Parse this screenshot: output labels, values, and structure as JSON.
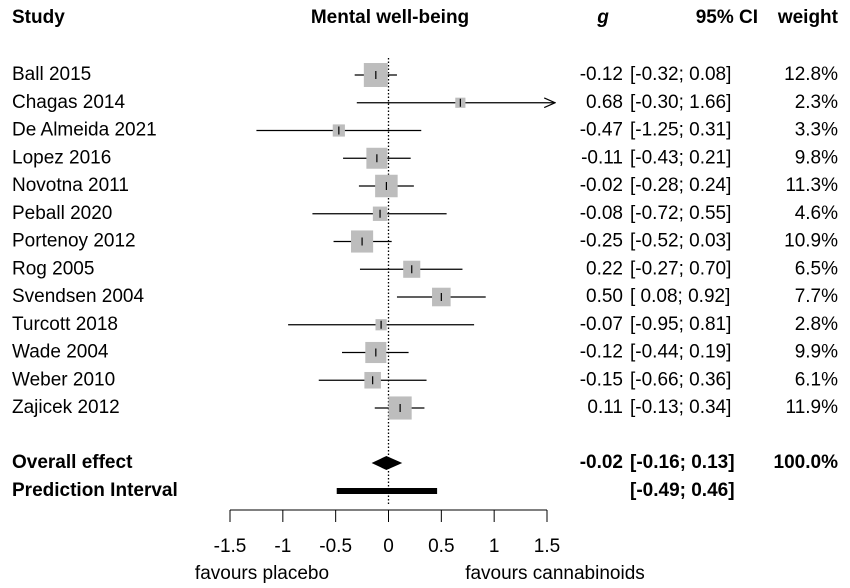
{
  "chart_data": {
    "type": "forest",
    "headers": {
      "study": "Study",
      "title": "Mental well-being",
      "g": "g",
      "ci": "95% CI",
      "weight": "weight"
    },
    "studies": [
      "Ball 2015",
      "Chagas 2014",
      "De Almeida 2021",
      "Lopez 2016",
      "Novotna 2011",
      "Peball 2020",
      "Portenoy 2012",
      "Rog 2005",
      "Svendsen 2004",
      "Turcott 2018",
      "Wade 2004",
      "Weber 2010",
      "Zajicek 2012"
    ],
    "effect": {
      "values": [
        -0.12,
        0.68,
        -0.47,
        -0.11,
        -0.02,
        -0.08,
        -0.25,
        0.22,
        0.5,
        -0.07,
        -0.12,
        -0.15,
        0.11
      ],
      "value_labels": [
        "-0.12",
        "0.68",
        "-0.47",
        "-0.11",
        "-0.02",
        "-0.08",
        "-0.25",
        "0.22",
        "0.50",
        "-0.07",
        "-0.12",
        "-0.15",
        "0.11"
      ]
    },
    "ci_lower": [
      -0.32,
      -0.3,
      -1.25,
      -0.43,
      -0.28,
      -0.72,
      -0.52,
      -0.27,
      0.08,
      -0.95,
      -0.44,
      -0.66,
      -0.13
    ],
    "ci_upper": [
      0.08,
      1.66,
      0.31,
      0.21,
      0.24,
      0.55,
      0.03,
      0.7,
      0.92,
      0.81,
      0.19,
      0.36,
      0.34
    ],
    "ci_labels": [
      "[-0.32; 0.08]",
      "[-0.30; 1.66]",
      "[-1.25; 0.31]",
      "[-0.43; 0.21]",
      "[-0.28; 0.24]",
      "[-0.72; 0.55]",
      "[-0.52; 0.03]",
      "[-0.27; 0.70]",
      "[ 0.08; 0.92]",
      "[-0.95; 0.81]",
      "[-0.44; 0.19]",
      "[-0.66; 0.36]",
      "[-0.13; 0.34]"
    ],
    "weight": {
      "values": [
        12.8,
        2.3,
        3.3,
        9.8,
        11.3,
        4.6,
        10.9,
        6.5,
        7.7,
        2.8,
        9.9,
        6.1,
        11.9
      ],
      "value_labels": [
        "12.8%",
        "2.3%",
        "3.3%",
        "9.8%",
        "11.3%",
        "4.6%",
        "10.9%",
        "6.5%",
        "7.7%",
        "2.8%",
        "9.9%",
        "6.1%",
        "11.9%"
      ]
    },
    "overall": {
      "label": "Overall effect",
      "value": -0.02,
      "value_label": "-0.02",
      "ci_lower": -0.16,
      "ci_upper": 0.13,
      "ci_label": "[-0.16; 0.13]",
      "weight": 100.0,
      "weight_label": "100.0%"
    },
    "prediction": {
      "label": "Prediction Interval",
      "lower": -0.49,
      "upper": 0.46,
      "ci_label": "[-0.49; 0.46]"
    },
    "xlim": [
      -1.5,
      1.5
    ],
    "xticks": [
      -1.5,
      -1,
      -0.5,
      0,
      0.5,
      1,
      1.5
    ],
    "xlabel_left": "favours placebo",
    "xlabel_right": "favours cannabinoids",
    "square_color": "#bdbdbd"
  }
}
